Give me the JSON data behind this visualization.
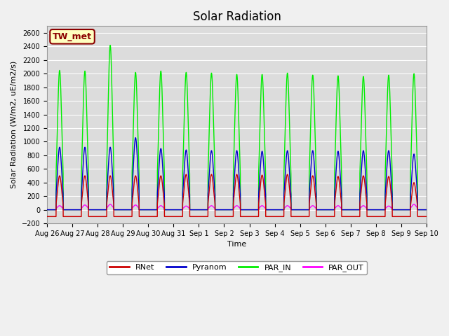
{
  "title": "Solar Radiation",
  "ylabel": "Solar Radiation (W/m2, uE/m2/s)",
  "xlabel": "Time",
  "ylim": [
    -200,
    2700
  ],
  "yticks": [
    -200,
    0,
    200,
    400,
    600,
    800,
    1000,
    1200,
    1400,
    1600,
    1800,
    2000,
    2200,
    2400,
    2600
  ],
  "annotation": "TW_met",
  "annotation_bg": "#FFFFC0",
  "annotation_border": "#8B0000",
  "bg_color": "#DCDCDC",
  "fig_bg": "#F0F0F0",
  "series_colors": {
    "RNet": "#CC0000",
    "Pyranom": "#0000CC",
    "PAR_IN": "#00EE00",
    "PAR_OUT": "#FF00FF"
  },
  "n_days": 15,
  "rnet_peaks": [
    600,
    600,
    600,
    600,
    600,
    620,
    620,
    620,
    610,
    620,
    600,
    590,
    600,
    590,
    500
  ],
  "pyranom_peaks": [
    920,
    920,
    920,
    1060,
    900,
    880,
    870,
    870,
    860,
    870,
    870,
    860,
    870,
    870,
    820
  ],
  "parin_peaks": [
    2050,
    2040,
    2420,
    2020,
    2040,
    2020,
    2010,
    1990,
    1990,
    2010,
    1980,
    1970,
    1960,
    1980,
    2000
  ],
  "parout_peaks": [
    60,
    70,
    80,
    70,
    60,
    55,
    60,
    60,
    60,
    60,
    60,
    60,
    60,
    55,
    80
  ],
  "rnet_night": -100,
  "tick_labels": [
    "Aug 26",
    "Aug 27",
    "Aug 28",
    "Aug 29",
    "Aug 30",
    "Aug 31",
    "Sep 1",
    "Sep 2",
    "Sep 3",
    "Sep 4",
    "Sep 5",
    "Sep 6",
    "Sep 7",
    "Sep 8",
    "Sep 9",
    "Sep 10"
  ],
  "title_fontsize": 12,
  "tick_fontsize": 7,
  "label_fontsize": 8
}
